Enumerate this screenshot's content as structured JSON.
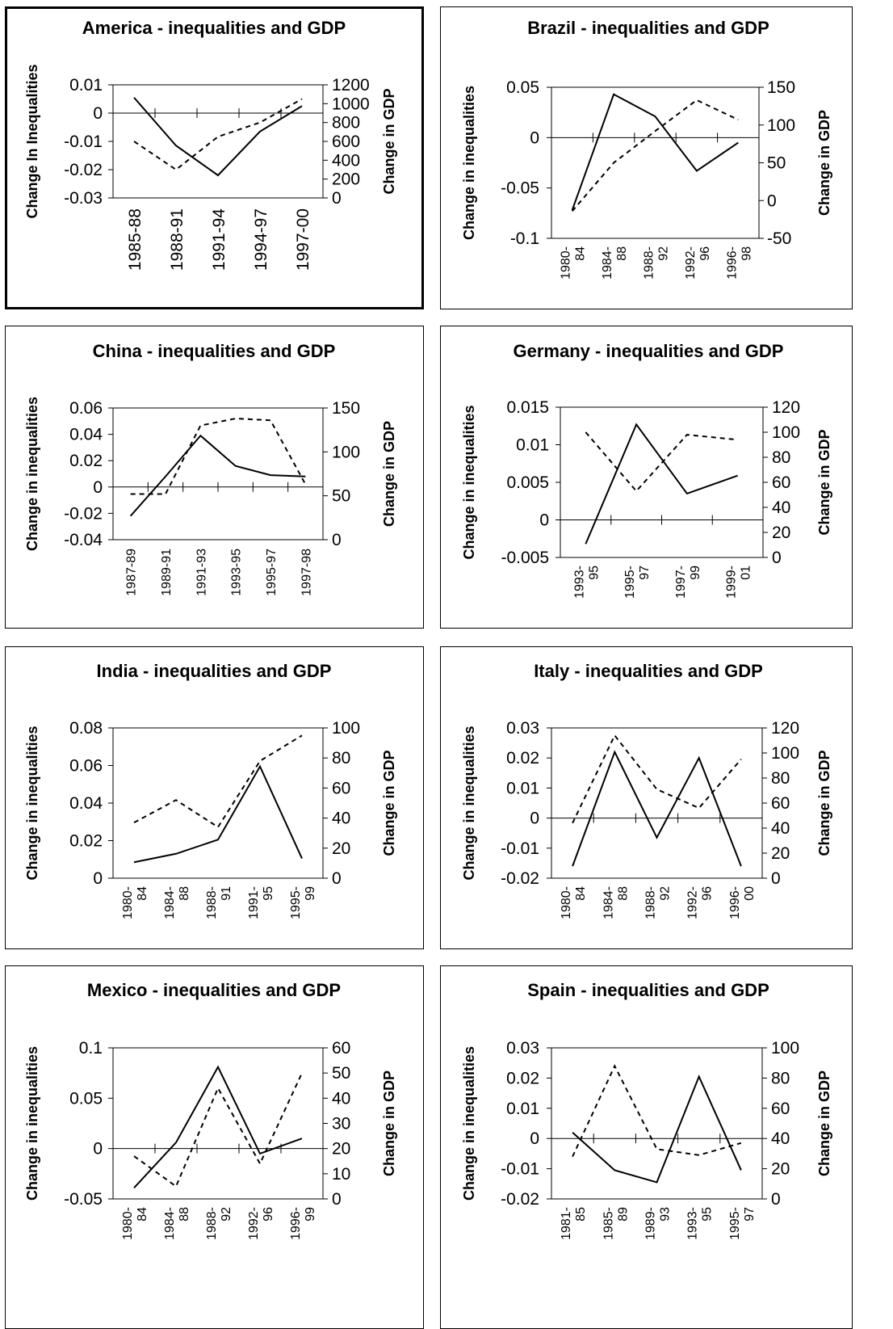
{
  "chart_data": [
    {
      "type": "line",
      "title": "America - inequalities and GDP",
      "ylabel": "Change In Inequalities",
      "y2label": "Change in GDP",
      "categories": [
        [
          "1985-88"
        ],
        [
          "1988-91"
        ],
        [
          "1991-94"
        ],
        [
          "1994-97"
        ],
        [
          "1997-00"
        ]
      ],
      "ylim": [
        -0.03,
        0.01
      ],
      "yticks": [
        "0.01",
        "0",
        "-0.01",
        "-0.02",
        "-0.03"
      ],
      "y2lim": [
        0,
        1200
      ],
      "y2ticks": [
        "1200",
        "1000",
        "800",
        "600",
        "400",
        "200",
        "0"
      ],
      "series": [
        {
          "style": "solid",
          "axis": "left",
          "values": [
            0.0055,
            -0.0115,
            -0.022,
            -0.0065,
            0.0025
          ]
        },
        {
          "style": "dashed",
          "axis": "right",
          "values": [
            600,
            300,
            650,
            800,
            1050
          ]
        }
      ],
      "grid": false,
      "legend": "none"
    },
    {
      "type": "line",
      "title": "Brazil - inequalities and GDP",
      "ylabel": "Change in inequalities",
      "y2label": "Change in GDP",
      "categories": [
        [
          "1980-",
          "84"
        ],
        [
          "1984-",
          "88"
        ],
        [
          "1988-",
          "92"
        ],
        [
          "1992-",
          "96"
        ],
        [
          "1996-",
          "98"
        ]
      ],
      "ylim": [
        -0.1,
        0.05
      ],
      "yticks": [
        "0.05",
        "0",
        "-0.05",
        "-0.1"
      ],
      "y2lim": [
        -50,
        150
      ],
      "y2ticks": [
        "150",
        "100",
        "50",
        "0",
        "-50"
      ],
      "series": [
        {
          "style": "solid",
          "axis": "left",
          "values": [
            -0.072,
            0.043,
            0.021,
            -0.033,
            -0.005
          ]
        },
        {
          "style": "dashed",
          "axis": "right",
          "values": [
            -14,
            50,
            92,
            133,
            107
          ]
        }
      ],
      "grid": false,
      "legend": "none"
    },
    {
      "type": "line",
      "title": "China - inequalities and GDP",
      "ylabel": "Change in inequalities",
      "y2label": "Change in GDP",
      "categories": [
        [
          "1987-89"
        ],
        [
          "1989-91"
        ],
        [
          "1991-93"
        ],
        [
          "1993-95"
        ],
        [
          "1995-97"
        ],
        [
          "1997-98"
        ]
      ],
      "ylim": [
        -0.04,
        0.06
      ],
      "yticks": [
        "0.06",
        "0.04",
        "0.02",
        "0",
        "-0.02",
        "-0.04"
      ],
      "y2lim": [
        0,
        150
      ],
      "y2ticks": [
        "150",
        "100",
        "50",
        "0"
      ],
      "series": [
        {
          "style": "solid",
          "axis": "left",
          "values": [
            -0.022,
            0.008,
            0.039,
            0.016,
            0.009,
            0.008
          ]
        },
        {
          "style": "dashed",
          "axis": "right",
          "values": [
            52,
            52,
            130,
            138,
            136,
            63
          ]
        }
      ],
      "grid": false,
      "legend": "none"
    },
    {
      "type": "line",
      "title": "Germany - inequalities and GDP",
      "ylabel": "Change in inequalities",
      "y2label": "Change in GDP",
      "categories": [
        [
          "1993-",
          "95"
        ],
        [
          "1995-",
          "97"
        ],
        [
          "1997-",
          "99"
        ],
        [
          "1999-",
          "01"
        ]
      ],
      "ylim": [
        -0.005,
        0.015
      ],
      "yticks": [
        "0.015",
        "0.01",
        "0.005",
        "0",
        "-0.005"
      ],
      "y2lim": [
        0,
        120
      ],
      "y2ticks": [
        "120",
        "100",
        "80",
        "60",
        "40",
        "20",
        "0"
      ],
      "series": [
        {
          "style": "solid",
          "axis": "left",
          "values": [
            -0.0032,
            0.0127,
            0.0035,
            0.0059
          ]
        },
        {
          "style": "dashed",
          "axis": "right",
          "values": [
            100,
            53,
            98,
            94
          ]
        }
      ],
      "grid": false,
      "legend": "none"
    },
    {
      "type": "line",
      "title": "India - inequalities and GDP",
      "ylabel": "Change in inequalities",
      "y2label": "Change in GDP",
      "categories": [
        [
          "1980-",
          "84"
        ],
        [
          "1984-",
          "88"
        ],
        [
          "1988-",
          "91"
        ],
        [
          "1991-",
          "95"
        ],
        [
          "1995-",
          "99"
        ]
      ],
      "ylim": [
        0,
        0.08
      ],
      "yticks": [
        "0.08",
        "0.06",
        "0.04",
        "0.02",
        "0"
      ],
      "y2lim": [
        0,
        100
      ],
      "y2ticks": [
        "100",
        "80",
        "60",
        "40",
        "20",
        "0"
      ],
      "series": [
        {
          "style": "solid",
          "axis": "left",
          "values": [
            0.0085,
            0.013,
            0.0205,
            0.0595,
            0.0105
          ]
        },
        {
          "style": "dashed",
          "axis": "right",
          "values": [
            37,
            52,
            34,
            78,
            95
          ]
        }
      ],
      "grid": false,
      "legend": "none"
    },
    {
      "type": "line",
      "title": "Italy - inequalities and GDP",
      "ylabel": "Change in inequalities",
      "y2label": "Change in GDP",
      "categories": [
        [
          "1980-",
          "84"
        ],
        [
          "1984-",
          "88"
        ],
        [
          "1988-",
          "92"
        ],
        [
          "1992-",
          "96"
        ],
        [
          "1996-",
          "00"
        ]
      ],
      "ylim": [
        -0.02,
        0.03
      ],
      "yticks": [
        "0.03",
        "0.02",
        "0.01",
        "0",
        "-0.01",
        "-0.02"
      ],
      "y2lim": [
        0,
        120
      ],
      "y2ticks": [
        "120",
        "100",
        "80",
        "60",
        "40",
        "20",
        "0"
      ],
      "series": [
        {
          "style": "solid",
          "axis": "left",
          "values": [
            -0.016,
            0.022,
            -0.0065,
            0.02,
            -0.016
          ]
        },
        {
          "style": "dashed",
          "axis": "right",
          "values": [
            44,
            114,
            71,
            56,
            95
          ]
        }
      ],
      "grid": false,
      "legend": "none"
    },
    {
      "type": "line",
      "title": "Mexico - inequalities and GDP",
      "ylabel": "Change in inequalities",
      "y2label": "Change in GDP",
      "categories": [
        [
          "1980-",
          "84"
        ],
        [
          "1984-",
          "88"
        ],
        [
          "1988-",
          "92"
        ],
        [
          "1992-",
          "96"
        ],
        [
          "1996-",
          "99"
        ]
      ],
      "ylim": [
        -0.05,
        0.1
      ],
      "yticks": [
        "0.1",
        "0.05",
        "0",
        "-0.05"
      ],
      "y2lim": [
        0,
        60
      ],
      "y2ticks": [
        "60",
        "50",
        "40",
        "30",
        "20",
        "10",
        "0"
      ],
      "series": [
        {
          "style": "solid",
          "axis": "left",
          "values": [
            -0.039,
            0.006,
            0.081,
            -0.005,
            0.01
          ]
        },
        {
          "style": "dashed",
          "axis": "right",
          "values": [
            17,
            5,
            44,
            14,
            50
          ]
        }
      ],
      "grid": false,
      "legend": "none"
    },
    {
      "type": "line",
      "title": "Spain - inequalities and GDP",
      "ylabel": "Change in inequalities",
      "y2label": "Change in GDP",
      "categories": [
        [
          "1981-",
          "85"
        ],
        [
          "1985-",
          "89"
        ],
        [
          "1989-",
          "93"
        ],
        [
          "1993-",
          "95"
        ],
        [
          "1995-",
          "97"
        ]
      ],
      "ylim": [
        -0.02,
        0.03
      ],
      "yticks": [
        "0.03",
        "0.02",
        "0.01",
        "0",
        "-0.01",
        "-0.02"
      ],
      "y2lim": [
        0,
        100
      ],
      "y2ticks": [
        "100",
        "80",
        "60",
        "40",
        "20",
        "0"
      ],
      "series": [
        {
          "style": "solid",
          "axis": "left",
          "values": [
            0.002,
            -0.0105,
            -0.0145,
            0.0205,
            -0.0105
          ]
        },
        {
          "style": "dashed",
          "axis": "right",
          "values": [
            28,
            88,
            33,
            29,
            37
          ]
        }
      ],
      "grid": false,
      "legend": "none"
    }
  ]
}
